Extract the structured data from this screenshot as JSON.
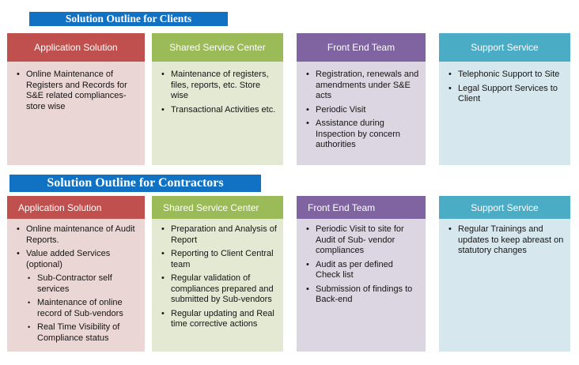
{
  "page": {
    "background": "#FFFFFF"
  },
  "sections": [
    {
      "title": "Solution Outline for Clients",
      "banner_color": "#1171C2",
      "columns": [
        {
          "header": "Application Solution",
          "header_color": "#C0504D",
          "body_color": "#EAD6D4",
          "items": [
            {
              "level": 1,
              "text": "Online Maintenance of Registers and Records for S&E related compliances- store wise"
            }
          ]
        },
        {
          "header": "Shared Service Center",
          "header_color": "#9BBB59",
          "body_color": "#E4E9D3",
          "items": [
            {
              "level": 1,
              "text": "Maintenance of registers, files, reports, etc. Store wise"
            },
            {
              "level": 1,
              "text": "Transactional Activities etc."
            }
          ]
        },
        {
          "header": "Front End Team",
          "header_color": "#8064A2",
          "body_color": "#DBD6E1",
          "items": [
            {
              "level": 1,
              "text": "Registration, renewals and amendments under S&E acts"
            },
            {
              "level": 1,
              "text": "Periodic Visit"
            },
            {
              "level": 1,
              "text": "Assistance during Inspection by concern authorities"
            }
          ]
        },
        {
          "header": "Support Service",
          "header_color": "#4BACC6",
          "body_color": "#D7E7EE",
          "items": [
            {
              "level": 1,
              "text": "Telephonic Support to Site"
            },
            {
              "level": 1,
              "text": "Legal Support Services to Client"
            }
          ]
        }
      ]
    },
    {
      "title": "Solution Outline for Contractors",
      "banner_color": "#1171C2",
      "columns": [
        {
          "header": "Application Solution",
          "header_color": "#C0504D",
          "body_color": "#EAD6D4",
          "items": [
            {
              "level": 1,
              "text": "Online maintenance of Audit Reports."
            },
            {
              "level": 1,
              "text": "Value added Services (optional)"
            },
            {
              "level": 2,
              "text": "Sub-Contractor self services"
            },
            {
              "level": 2,
              "text": "Maintenance of online record of Sub-vendors"
            },
            {
              "level": 2,
              "text": "Real Time Visibility of Compliance status"
            }
          ]
        },
        {
          "header": "Shared Service Center",
          "header_color": "#9BBB59",
          "body_color": "#E4E9D3",
          "items": [
            {
              "level": 1,
              "text": "Preparation and Analysis of Report"
            },
            {
              "level": 1,
              "text": "Reporting to Client Central team"
            },
            {
              "level": 1,
              "text": "Regular validation of compliances prepared and submitted by Sub-vendors"
            },
            {
              "level": 1,
              "text": "Regular updating and Real time corrective actions"
            }
          ]
        },
        {
          "header": "Front End Team",
          "header_color": "#8064A2",
          "body_color": "#DBD6E1",
          "items": [
            {
              "level": 1,
              "text": "Periodic Visit to site for Audit of Sub- vendor compliances"
            },
            {
              "level": 1,
              "text": "Audit as per defined Check list"
            },
            {
              "level": 1,
              "text": "Submission of findings to Back-end"
            }
          ]
        },
        {
          "header": "Support Service",
          "header_color": "#4BACC6",
          "body_color": "#D7E7EE",
          "items": [
            {
              "level": 1,
              "text": "Regular Trainings and updates to keep abreast on statutory changes"
            }
          ]
        }
      ]
    }
  ]
}
